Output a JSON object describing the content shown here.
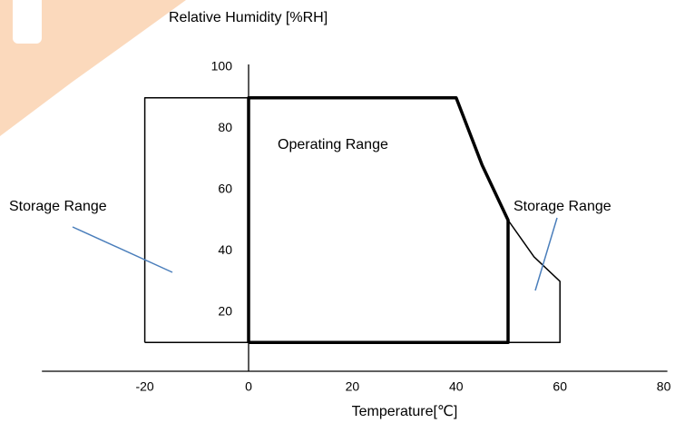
{
  "chart_data": {
    "type": "line",
    "y_label": "Relative Humidity [%RH]",
    "x_label": "Temperature[℃]",
    "xlim": [
      -40,
      80
    ],
    "ylim": [
      0,
      100
    ],
    "xticks": [
      -20,
      0,
      20,
      40,
      60,
      80
    ],
    "yticks": [
      20,
      40,
      60,
      80,
      100
    ],
    "series": [
      {
        "color": "#000000",
        "x": [
          -20,
          -20,
          40,
          45,
          50,
          55,
          60,
          60,
          -20
        ],
        "values": [
          10,
          90,
          90,
          68,
          50,
          38,
          30,
          10,
          10
        ]
      },
      {
        "color": "#000000",
        "x": [
          0,
          0,
          40,
          45,
          50,
          50,
          0
        ],
        "values": [
          10,
          90,
          90,
          68,
          50,
          10,
          10
        ]
      }
    ],
    "annotations": [
      "Storage Range",
      "Operating Range",
      "Storage Range"
    ]
  }
}
